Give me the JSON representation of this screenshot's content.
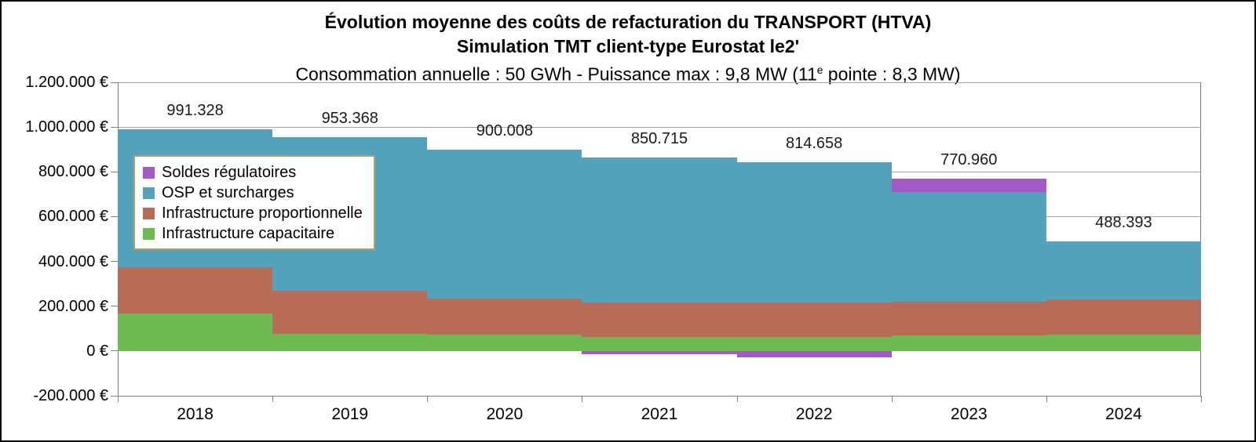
{
  "title": {
    "line1": "Évolution moyenne des coûts de refacturation du TRANSPORT (HTVA)",
    "line2": "Simulation TMT client-type Eurostat le2'",
    "line3_before": "Consommation annuelle : 50 GWh - Puissance max : 9,8 MW (11",
    "line3_sup": "e",
    "line3_after": " pointe : 8,3 MW)"
  },
  "chart_data": {
    "type": "bar",
    "stacked": true,
    "grid": "horizontal",
    "legend_position": "inside-top-left",
    "categories": [
      "2018",
      "2019",
      "2020",
      "2021",
      "2022",
      "2023",
      "2024"
    ],
    "series": [
      {
        "key": "capacitaire",
        "name": "Infrastructure capacitaire",
        "color": "#6dba52",
        "values": [
          169000,
          76000,
          73000,
          61000,
          64000,
          70000,
          73500
        ]
      },
      {
        "key": "proportionnelle",
        "name": "Infrastructure proportionnelle",
        "color": "#b66c57",
        "values": [
          204000,
          194000,
          160000,
          155000,
          152000,
          149000,
          157300
        ]
      },
      {
        "key": "osp",
        "name": "OSP et surcharges",
        "color": "#54a2bb",
        "values": [
          618328,
          683368,
          667008,
          649715,
          626658,
          492260,
          257593
        ]
      },
      {
        "key": "soldes",
        "name": "Soldes régulatoires",
        "color": "#a25bc4",
        "values": [
          0,
          0,
          0,
          -15000,
          -28000,
          59700,
          0
        ]
      }
    ],
    "totals": [
      991328,
      953368,
      900008,
      850715,
      814658,
      770960,
      488393
    ],
    "total_labels": [
      "991.328",
      "953.368",
      "900.008",
      "850.715",
      "814.658",
      "770.960",
      "488.393"
    ],
    "ylim": [
      -200000,
      1200000
    ],
    "yticks": [
      {
        "label": "1.200.000 €",
        "value": 1200000
      },
      {
        "label": "1.000.000 €",
        "value": 1000000
      },
      {
        "label": "800.000 €",
        "value": 800000
      },
      {
        "label": "600.000 €",
        "value": 600000
      },
      {
        "label": "400.000 €",
        "value": 400000
      },
      {
        "label": "200.000 €",
        "value": 200000
      },
      {
        "label": "0 €",
        "value": 0
      },
      {
        "label": "-200.000 €",
        "value": -200000
      }
    ],
    "legend": [
      {
        "label": "Soldes régulatoires",
        "color": "#a25bc4"
      },
      {
        "label": "OSP et surcharges",
        "color": "#54a2bb"
      },
      {
        "label": "Infrastructure proportionnelle",
        "color": "#b66c57"
      },
      {
        "label": "Infrastructure capacitaire",
        "color": "#6dba52"
      }
    ],
    "colors": {
      "gridline": "#a6a6a6",
      "axis": "#808080",
      "legend_border": "#b2a06b"
    }
  }
}
